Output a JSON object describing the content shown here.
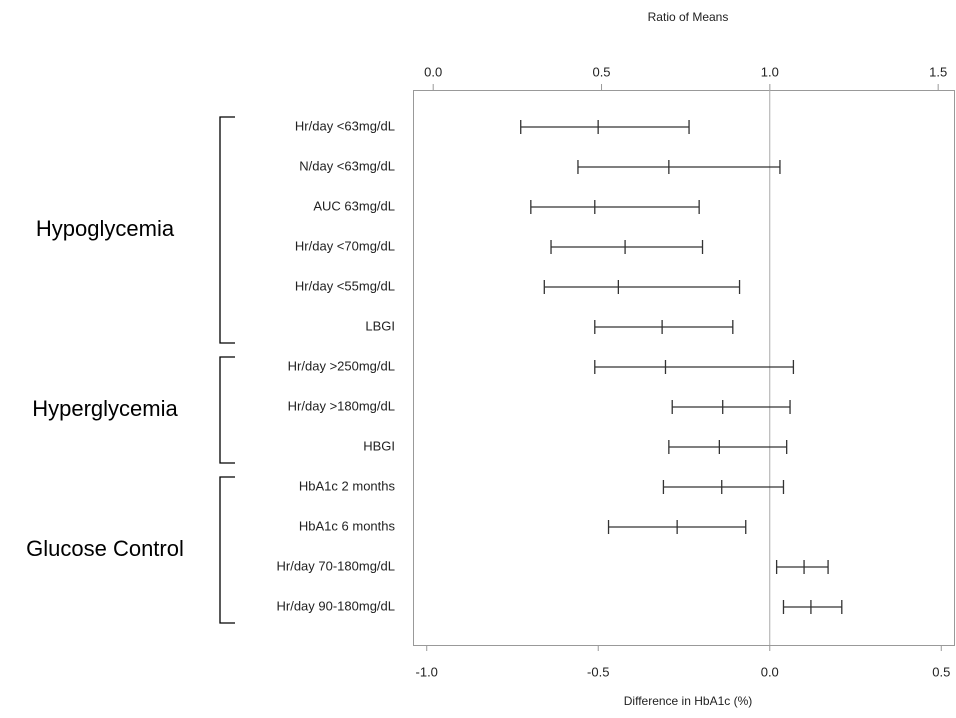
{
  "chart_data": {
    "type": "forest",
    "title": "Ratio of Means",
    "x_label": "Difference in HbA1c (%)",
    "xlim": [
      -1.04,
      0.54
    ],
    "xticks": [
      {
        "value": -1.0,
        "label": "-1.0"
      },
      -0.5,
      {
        "value": 0,
        "label": "0.0"
      },
      0.5
    ],
    "x2lim": [
      -0.06,
      1.55
    ],
    "x2ticks": [
      {
        "value": 0,
        "label": "0.0"
      },
      0.5,
      {
        "value": 1,
        "label": "1.0"
      },
      1.5
    ],
    "reference_line": 0,
    "color": "#333333",
    "groups": [
      {
        "name": "Hypoglycemia",
        "axis": "x2",
        "categories": [
          "Hr/day <63mg/dL",
          "N/day <63mg/dL",
          "AUC 63mg/dL",
          "Hr/day <70mg/dL",
          "Hr/day <55mg/dL",
          "LBGI"
        ],
        "lower": [
          0.26,
          0.43,
          0.29,
          0.35,
          0.33,
          0.48
        ],
        "estimate": [
          0.49,
          0.7,
          0.48,
          0.57,
          0.55,
          0.68
        ],
        "upper": [
          0.76,
          1.03,
          0.79,
          0.8,
          0.91,
          0.89
        ]
      },
      {
        "name": "Hyperglycemia",
        "axis": "x2",
        "categories": [
          "Hr/day >250mg/dL",
          "Hr/day >180mg/dL",
          "HBGI"
        ],
        "lower": [
          0.48,
          0.71,
          0.7
        ],
        "estimate": [
          0.69,
          0.86,
          0.85
        ],
        "upper": [
          1.07,
          1.06,
          1.05
        ]
      },
      {
        "name": "Glucose Control",
        "axis": "x",
        "categories": [
          "HbA1c 2 months",
          "HbA1c 6 months",
          "Hr/day 70-180mg/dL",
          "Hr/day 90-180mg/dL"
        ],
        "lower": [
          -0.31,
          -0.47,
          0.02,
          0.04
        ],
        "estimate": [
          -0.14,
          -0.27,
          0.1,
          0.12
        ],
        "upper": [
          0.04,
          -0.07,
          0.17,
          0.21
        ]
      }
    ]
  }
}
